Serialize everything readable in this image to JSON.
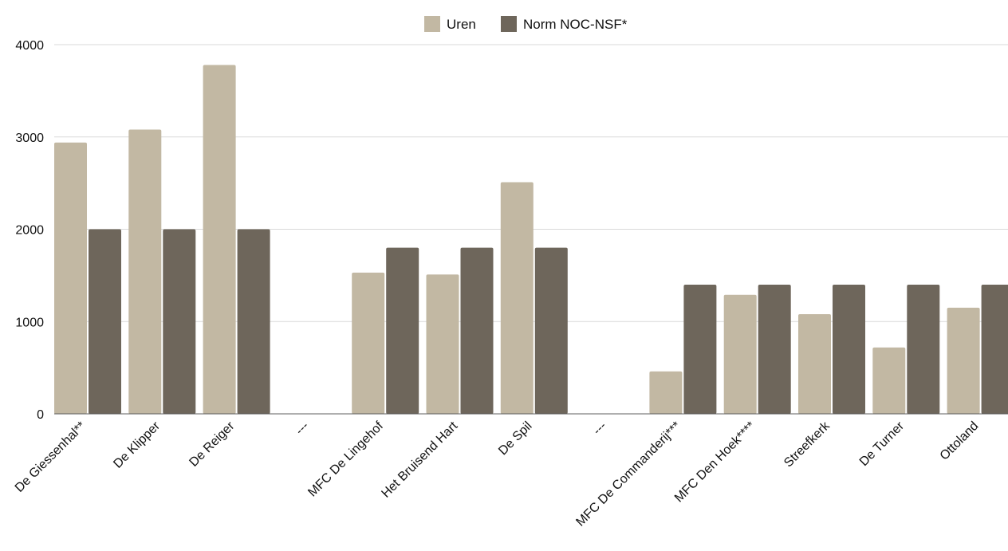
{
  "chart_data": {
    "type": "bar",
    "title": "",
    "xlabel": "",
    "ylabel": "",
    "ylim": [
      0,
      4000
    ],
    "yticks": [
      0,
      1000,
      2000,
      3000,
      4000
    ],
    "grid": true,
    "legend_position": "top-center",
    "categories": [
      "De Giessenhal**",
      "De Klipper",
      "De Reiger",
      "---",
      "MFC De Lingehof",
      "Het Bruisend Hart",
      "De Spil",
      "---",
      "MFC De Commanderij***",
      "MFC Den Hoek****",
      "Streefkerk",
      "De Turner",
      "Ottoland"
    ],
    "series": [
      {
        "name": "Uren",
        "color": "#c2b8a3",
        "values": [
          2940,
          3080,
          3780,
          0,
          1530,
          1510,
          2510,
          0,
          460,
          1290,
          1080,
          720,
          1150
        ]
      },
      {
        "name": "Norm NOC-NSF*",
        "color": "#6e665b",
        "values": [
          2000,
          2000,
          2000,
          0,
          1800,
          1800,
          1800,
          0,
          1400,
          1400,
          1400,
          1400,
          1400
        ]
      }
    ]
  }
}
